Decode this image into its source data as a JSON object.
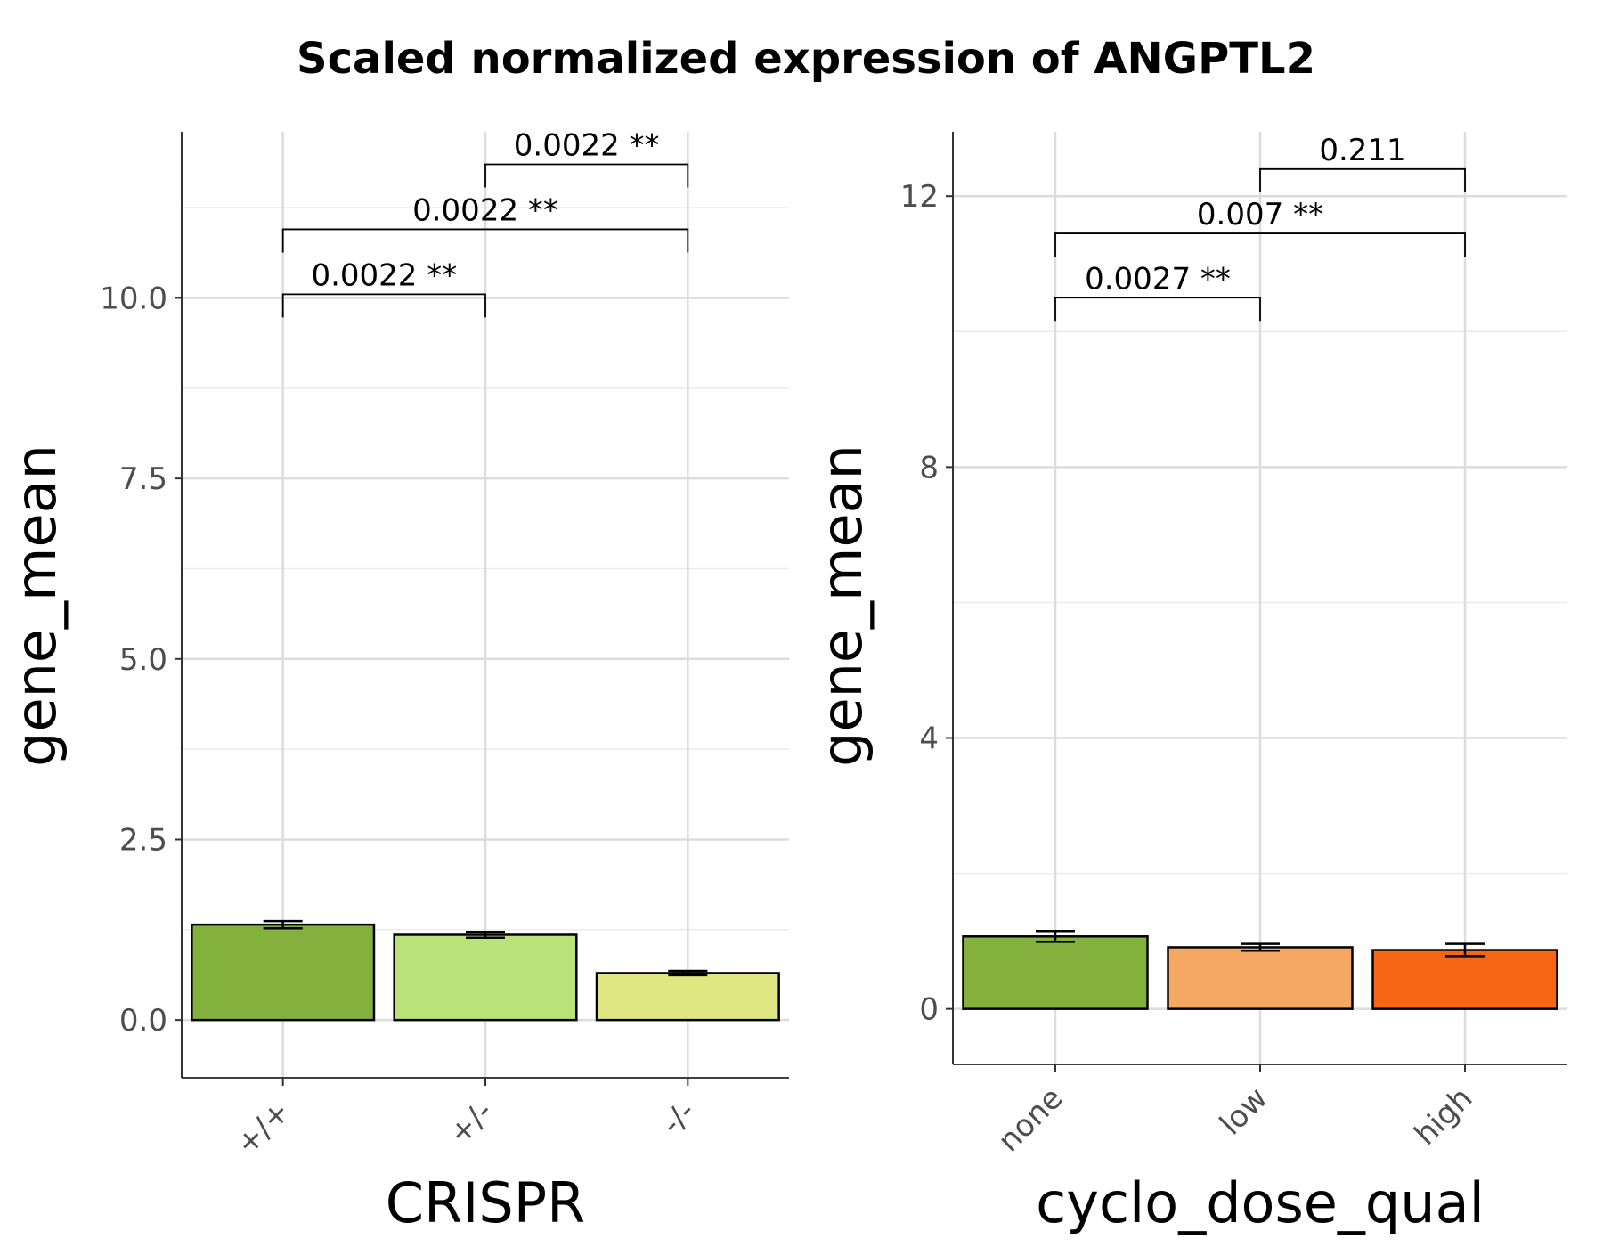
{
  "title": "Scaled normalized expression of ANGPTL2",
  "chart_data": [
    {
      "type": "bar",
      "xlabel": "CRISPR",
      "ylabel": "gene_mean",
      "categories": [
        "+/+",
        "+/-",
        "-/-"
      ],
      "values": [
        1.32,
        1.18,
        0.65
      ],
      "errors": [
        0.05,
        0.04,
        0.03
      ],
      "colors": [
        "#84b03d",
        "#b9e278",
        "#dfe882"
      ],
      "ylim": [
        -0.8,
        12.3
      ],
      "yticks": [
        0.0,
        2.5,
        5.0,
        7.5,
        10.0
      ],
      "ytick_labels": [
        "0.0",
        "2.5",
        "5.0",
        "7.5",
        "10.0"
      ],
      "grid": true,
      "comparisons": [
        {
          "from": 0,
          "to": 1,
          "y": 10.05,
          "label": "0.0022 **"
        },
        {
          "from": 0,
          "to": 2,
          "y": 10.95,
          "label": "0.0022 **"
        },
        {
          "from": 1,
          "to": 2,
          "y": 11.85,
          "label": "0.0022 **"
        }
      ]
    },
    {
      "type": "bar",
      "xlabel": "cyclo_dose_qual",
      "ylabel": "gene_mean",
      "categories": [
        "none",
        "low",
        "high"
      ],
      "values": [
        1.07,
        0.91,
        0.87
      ],
      "errors": [
        0.08,
        0.05,
        0.09
      ],
      "colors": [
        "#84b03d",
        "#f5a864",
        "#f76614"
      ],
      "ylim": [
        -0.82,
        12.95
      ],
      "yticks": [
        0,
        4,
        8,
        12
      ],
      "ytick_labels": [
        "0",
        "4",
        "8",
        "12"
      ],
      "grid": true,
      "comparisons": [
        {
          "from": 0,
          "to": 1,
          "y": 10.5,
          "label": "0.0027 **"
        },
        {
          "from": 0,
          "to": 2,
          "y": 11.45,
          "label": "0.007 **"
        },
        {
          "from": 1,
          "to": 2,
          "y": 12.4,
          "label": "0.211"
        }
      ]
    }
  ]
}
